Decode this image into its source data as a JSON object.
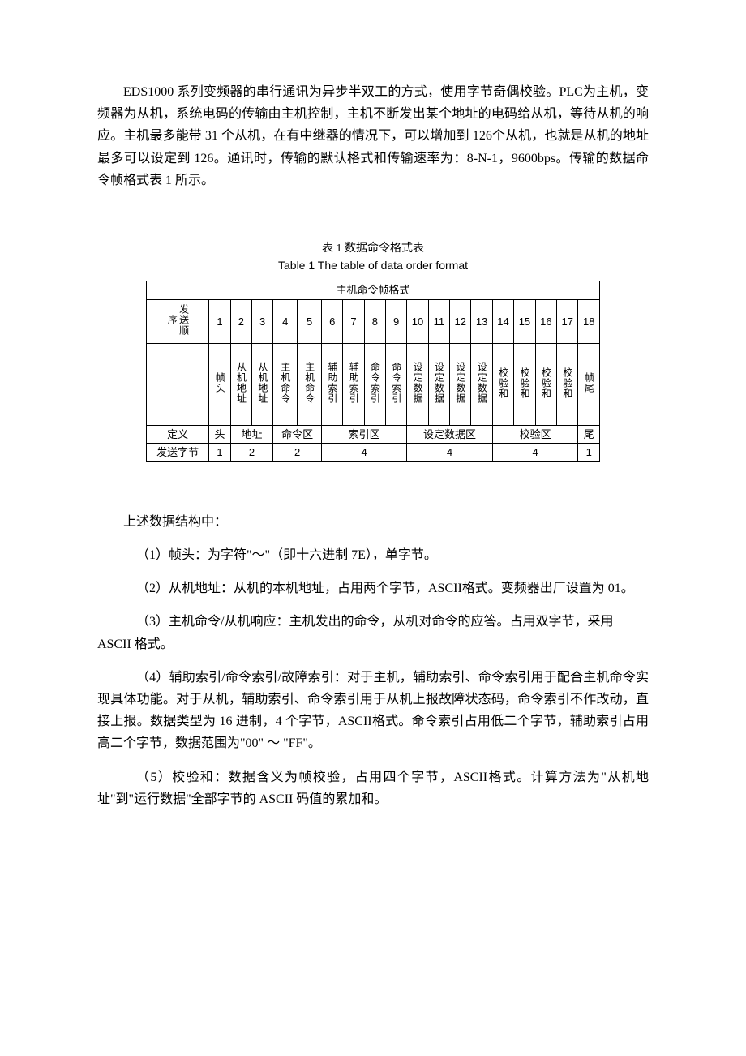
{
  "intro": "EDS1000 系列变频器的串行通讯为异步半双工的方式，使用字节奇偶校验。PLC为主机，变频器为从机，系统电码的传输由主机控制，主机不断发出某个地址的电码给从机，等待从机的响应。主机最多能带 31 个从机，在有中继器的情况下，可以增加到 126个从机，也就是从机的地址最多可以设定到 126。通讯时，传输的默认格式和传输速率为：8-N-1，9600bps。传输的数据命令帧格式表 1 所示。",
  "table": {
    "caption_cn": "表 1  数据命令格式表",
    "caption_en": "Table 1 The table of data order format",
    "title": "主机命令帧格式",
    "row_labels": {
      "order": "发送顺序",
      "def": "定义",
      "bytes": "发送字节"
    },
    "seq": [
      "1",
      "2",
      "3",
      "4",
      "5",
      "6",
      "7",
      "8",
      "9",
      "10",
      "11",
      "12",
      "13",
      "14",
      "15",
      "16",
      "17",
      "18"
    ],
    "fields": [
      "帧头",
      "从机地址",
      "从机地址",
      "主机命令",
      "主机命令",
      "辅助索引",
      "辅助索引",
      "命令索引",
      "命令索引",
      "设定数据",
      "设定数据",
      "设定数据",
      "设定数据",
      "校验和",
      "校验和",
      "校验和",
      "校验和",
      "帧尾"
    ],
    "defs": [
      "头",
      "地址",
      "命令区",
      "索引区",
      "设定数据区",
      "校验区",
      "尾"
    ],
    "bytes": [
      "1",
      "2",
      "2",
      "4",
      "4",
      "4",
      "1"
    ]
  },
  "body": {
    "lead": "上述数据结构中：",
    "p1": "（1）帧头：为字符\"～\"（即十六进制 7E），单字节。",
    "p2": "（2）从机地址：从机的本机地址，占用两个字节，ASCII格式。变频器出厂设置为 01。",
    "p3a": "（3）主机命令/从机响应：主机发出的命令，从机对命令的应答。占用双字节，采用",
    "p3b": "ASCII 格式。",
    "p4": "（4）辅助索引/命令索引/故障索引：对于主机，辅助索引、命令索引用于配合主机命令实现具体功能。对于从机，辅助索引、命令索引用于从机上报故障状态码，命令索引不作改动，直接上报。数据类型为 16 进制，4 个字节，ASCII格式。命令索引占用低二个字节，辅助索引占用高二个字节，数据范围为\"00\" ～ \"FF\"。",
    "p5": "（5）校验和：数据含义为帧校验，占用四个字节，ASCII格式。计算方法为\"从机地址\"到\"运行数据\"全部字节的 ASCII 码值的累加和。"
  },
  "colors": {
    "text": "#000000",
    "bg": "#ffffff",
    "border": "#000000"
  }
}
